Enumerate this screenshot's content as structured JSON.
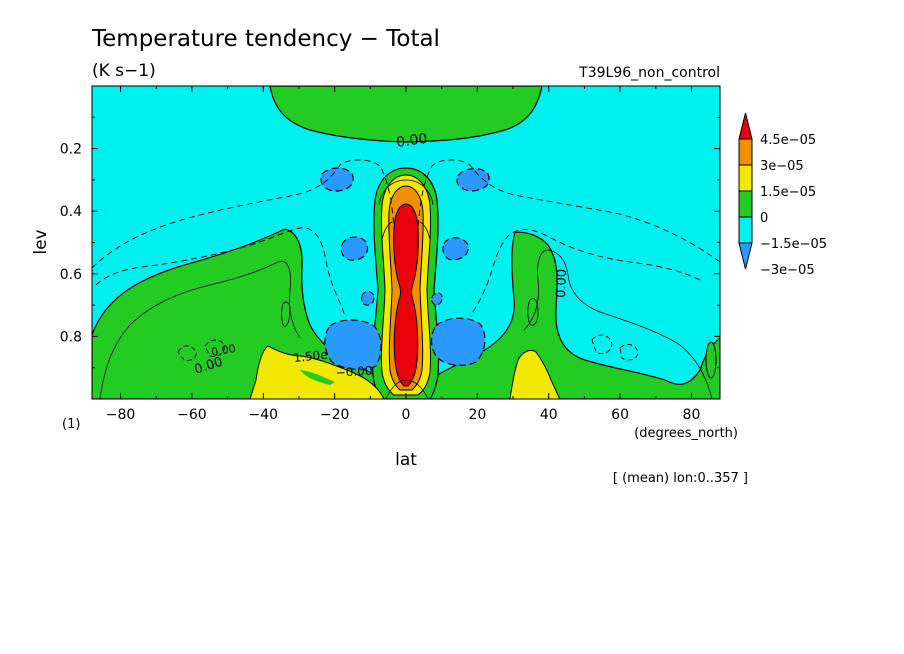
{
  "chart_data": {
    "type": "heatmap",
    "title": "Temperature tendency − Total",
    "subtitle": "(K s−1)",
    "experiment": "T39L96_non_control",
    "xlabel": "lat",
    "x_unit_label": "(degrees_north)",
    "ylabel": "lev",
    "y_unit_label": "(1)",
    "footnote": "[ (mean) lon:0..357 ]",
    "xlim": [
      -88,
      88
    ],
    "ylim": [
      0.0,
      1.0
    ],
    "y_inverted": true,
    "x_ticks": [
      "−80",
      "−60",
      "−40",
      "−20",
      "0",
      "20",
      "40",
      "60",
      "80"
    ],
    "x_tick_values": [
      -80,
      -60,
      -40,
      -20,
      0,
      20,
      40,
      60,
      80
    ],
    "y_ticks": [
      "0.2",
      "0.4",
      "0.6",
      "0.8"
    ],
    "y_tick_values": [
      0.2,
      0.4,
      0.6,
      0.8
    ],
    "colorbar": {
      "labels": [
        "4.5e−05",
        "3e−05",
        "1.5e−05",
        "0",
        "−1.5e−05",
        "−3e−05"
      ],
      "colors": [
        "#e8000b",
        "#f19000",
        "#f2e800",
        "#22cc22",
        "#00f0f0",
        "#2a9aff"
      ],
      "levels": [
        -3e-05,
        -1.5e-05,
        0,
        1.5e-05,
        3e-05,
        4.5e-05
      ]
    },
    "contour_labels": [
      "0.00",
      "0.00",
      "0.00",
      "0.00",
      "1.50e",
      "−0.00"
    ],
    "regions": [
      {
        "name": "background",
        "level": "-1.5e-05..0",
        "color": "#00f0f0"
      },
      {
        "name": "upper-band",
        "level": "0..1.5e-05",
        "color": "#22cc22",
        "lat": [
          -38,
          38
        ],
        "lev": [
          0.0,
          0.19
        ]
      },
      {
        "name": "equatorial-column",
        "level": ">4.5e-05",
        "color": "#e8000b",
        "lat": [
          -4,
          4
        ],
        "lev": [
          0.37,
          0.97
        ]
      },
      {
        "name": "sh-lower-warm",
        "level": "0..1.5e-05",
        "color": "#22cc22",
        "lat": [
          -88,
          -25
        ],
        "lev": [
          0.45,
          1.0
        ]
      },
      {
        "name": "nh-lower-warm",
        "level": "0..1.5e-05",
        "color": "#22cc22",
        "lat": [
          25,
          88
        ],
        "lev": [
          0.45,
          1.0
        ]
      },
      {
        "name": "sh-boundary-layer",
        "level": "1.5e-05..3e-05",
        "color": "#f2e800",
        "lat": [
          -43,
          -10
        ],
        "lev": [
          0.82,
          1.0
        ]
      },
      {
        "name": "nh-boundary-layer",
        "level": "1.5e-05..3e-05",
        "color": "#f2e800",
        "lat": [
          30,
          45
        ],
        "lev": [
          0.84,
          1.0
        ]
      },
      {
        "name": "sh-cooling-lower",
        "level": "-3e-05..-1.5e-05",
        "color": "#2a9aff",
        "lat": [
          -24,
          -6
        ],
        "lev": [
          0.78,
          0.94
        ]
      },
      {
        "name": "nh-cooling-lower",
        "level": "-3e-05..-1.5e-05",
        "color": "#2a9aff",
        "lat": [
          6,
          24
        ],
        "lev": [
          0.77,
          0.92
        ]
      }
    ]
  }
}
